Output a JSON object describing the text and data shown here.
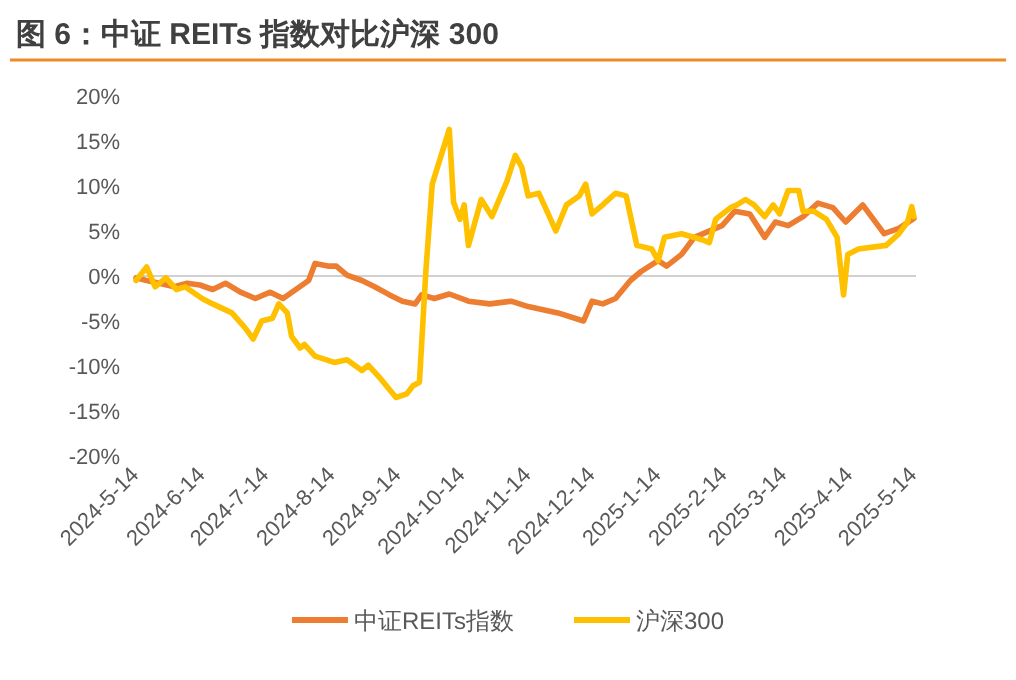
{
  "chart_data": {
    "type": "line",
    "title": "图 6：中证 REITs 指数对比沪深 300",
    "xlim": [
      "2024-05-14",
      "2025-05-15"
    ],
    "xticks": [
      {
        "value": "2024-05-14",
        "label": "2024-5-14"
      },
      {
        "value": "2024-06-14",
        "label": "2024-6-14"
      },
      {
        "value": "2024-07-14",
        "label": "2024-7-14"
      },
      {
        "value": "2024-08-14",
        "label": "2024-8-14"
      },
      {
        "value": "2024-09-14",
        "label": "2024-9-14"
      },
      {
        "value": "2024-10-14",
        "label": "2024-10-14"
      },
      {
        "value": "2024-11-14",
        "label": "2024-11-14"
      },
      {
        "value": "2024-12-14",
        "label": "2024-12-14"
      },
      {
        "value": "2025-01-14",
        "label": "2025-1-14"
      },
      {
        "value": "2025-02-14",
        "label": "2025-2-14"
      },
      {
        "value": "2025-03-14",
        "label": "2025-3-14"
      },
      {
        "value": "2025-04-14",
        "label": "2025-4-14"
      },
      {
        "value": "2025-05-14",
        "label": "2025-5-14"
      }
    ],
    "ylim": [
      -20,
      20
    ],
    "yticks": [
      {
        "value": -20,
        "label": "-20%"
      },
      {
        "value": -15,
        "label": "-15%"
      },
      {
        "value": -10,
        "label": "-10%"
      },
      {
        "value": -5,
        "label": "-5%"
      },
      {
        "value": 0,
        "label": "0%"
      },
      {
        "value": 5,
        "label": "5%"
      },
      {
        "value": 10,
        "label": "10%"
      },
      {
        "value": 15,
        "label": "15%"
      },
      {
        "value": 20,
        "label": "20%"
      }
    ],
    "legend": "bottom",
    "series": [
      {
        "name": "中证REITs指数",
        "color": "#ed7d31",
        "x": [
          "2024-05-14",
          "2024-05-19",
          "2024-05-25",
          "2024-06-01",
          "2024-06-07",
          "2024-06-13",
          "2024-06-19",
          "2024-06-25",
          "2024-07-02",
          "2024-07-09",
          "2024-07-16",
          "2024-07-22",
          "2024-07-28",
          "2024-08-03",
          "2024-08-06",
          "2024-08-12",
          "2024-08-16",
          "2024-08-21",
          "2024-08-28",
          "2024-09-03",
          "2024-09-10",
          "2024-09-16",
          "2024-09-22",
          "2024-09-25",
          "2024-10-01",
          "2024-10-08",
          "2024-10-17",
          "2024-10-27",
          "2024-11-06",
          "2024-11-14",
          "2024-11-28",
          "2024-12-10",
          "2024-12-14",
          "2024-12-19",
          "2024-12-25",
          "2025-01-01",
          "2025-01-06",
          "2025-01-14",
          "2025-01-18",
          "2025-01-25",
          "2025-01-31",
          "2025-02-13",
          "2025-02-19",
          "2025-02-26",
          "2025-03-05",
          "2025-03-10",
          "2025-03-16",
          "2025-03-23",
          "2025-03-30",
          "2025-04-06",
          "2025-04-12",
          "2025-04-20",
          "2025-04-30",
          "2025-05-07",
          "2025-05-14"
        ],
        "values": [
          -0.2,
          -0.5,
          -0.8,
          -1.2,
          -0.8,
          -1.0,
          -1.5,
          -0.8,
          -1.8,
          -2.5,
          -1.8,
          -2.5,
          -1.5,
          -0.5,
          1.4,
          1.1,
          1.1,
          0.1,
          -0.5,
          -1.2,
          -2.1,
          -2.8,
          -3.1,
          -2.1,
          -2.5,
          -2.0,
          -2.8,
          -3.1,
          -2.8,
          -3.4,
          -4.1,
          -5.0,
          -2.8,
          -3.1,
          -2.5,
          -0.5,
          0.5,
          1.7,
          1.1,
          2.4,
          4.3,
          5.6,
          7.2,
          6.9,
          4.3,
          6.0,
          5.6,
          6.6,
          8.1,
          7.6,
          6.0,
          7.9,
          4.7,
          5.3,
          6.4
        ]
      },
      {
        "name": "沪深300",
        "color": "#ffc000",
        "x": [
          "2024-05-14",
          "2024-05-19",
          "2024-05-23",
          "2024-05-28",
          "2024-06-02",
          "2024-06-06",
          "2024-06-14",
          "2024-06-19",
          "2024-06-28",
          "2024-07-04",
          "2024-07-08",
          "2024-07-12",
          "2024-07-17",
          "2024-07-20",
          "2024-07-24",
          "2024-07-26",
          "2024-07-30",
          "2024-08-01",
          "2024-08-06",
          "2024-08-15",
          "2024-08-21",
          "2024-08-28",
          "2024-08-31",
          "2024-09-05",
          "2024-09-13",
          "2024-09-18",
          "2024-09-21",
          "2024-09-24",
          "2024-09-27",
          "2024-09-30",
          "2024-10-08",
          "2024-10-10",
          "2024-10-13",
          "2024-10-15",
          "2024-10-17",
          "2024-10-23",
          "2024-10-28",
          "2024-11-04",
          "2024-11-08",
          "2024-11-11",
          "2024-11-14",
          "2024-11-19",
          "2024-11-24",
          "2024-11-27",
          "2024-12-02",
          "2024-12-08",
          "2024-12-11",
          "2024-12-14",
          "2024-12-19",
          "2024-12-25",
          "2024-12-30",
          "2025-01-04",
          "2025-01-11",
          "2025-01-14",
          "2025-01-17",
          "2025-01-25",
          "2025-02-04",
          "2025-02-07",
          "2025-02-10",
          "2025-02-17",
          "2025-02-20",
          "2025-02-24",
          "2025-02-28",
          "2025-03-05",
          "2025-03-09",
          "2025-03-12",
          "2025-03-16",
          "2025-03-21",
          "2025-03-23",
          "2025-03-28",
          "2025-04-03",
          "2025-04-08",
          "2025-04-11",
          "2025-04-13",
          "2025-04-18",
          "2025-05-01",
          "2025-05-07",
          "2025-05-11",
          "2025-05-13",
          "2025-05-14"
        ],
        "values": [
          -0.5,
          1.0,
          -1.2,
          -0.2,
          -1.5,
          -1.2,
          -2.5,
          -3.1,
          -4.1,
          -5.7,
          -7.0,
          -5.0,
          -4.7,
          -3.1,
          -4.1,
          -6.7,
          -8.0,
          -7.6,
          -8.9,
          -9.6,
          -9.3,
          -10.5,
          -9.9,
          -11.2,
          -13.5,
          -13.1,
          -12.2,
          -11.8,
          0.5,
          10.2,
          16.3,
          8.2,
          6.3,
          7.9,
          3.4,
          8.5,
          6.6,
          10.5,
          13.4,
          12.1,
          8.9,
          9.2,
          6.6,
          5.0,
          7.9,
          8.9,
          10.2,
          6.9,
          7.9,
          9.2,
          8.9,
          3.4,
          3.0,
          1.7,
          4.3,
          4.7,
          4.0,
          3.7,
          6.3,
          7.6,
          7.9,
          8.5,
          7.9,
          6.6,
          7.9,
          6.9,
          9.5,
          9.5,
          7.2,
          7.2,
          6.3,
          4.3,
          -2.1,
          2.4,
          3.0,
          3.4,
          4.7,
          6.0,
          7.7,
          6.6
        ]
      }
    ]
  }
}
